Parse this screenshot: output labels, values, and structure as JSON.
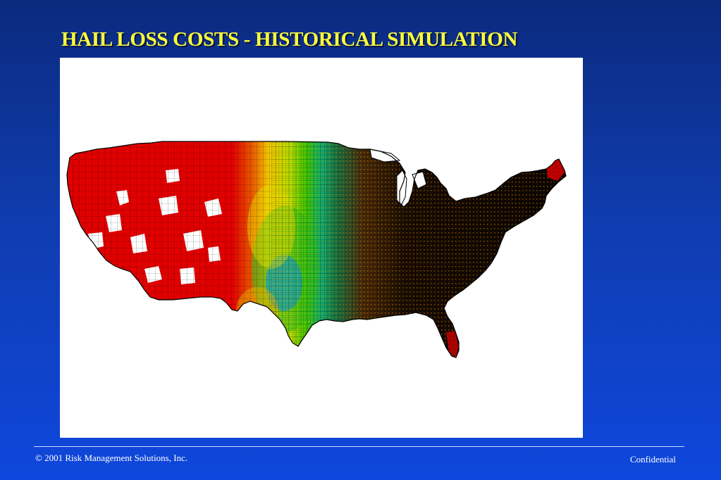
{
  "slide": {
    "title": "HAIL LOSS COSTS - HISTORICAL SIMULATION"
  },
  "map": {
    "description_icon": "us-county-choropleth-map",
    "color_scale": [
      "#e00000",
      "#e05a00",
      "#f0a000",
      "#f3e000",
      "#a6e000",
      "#38c800",
      "#00b88c",
      "#00a0e0"
    ],
    "boundary_color": "#000000"
  },
  "footer": {
    "copyright": "© 2001 Risk Management Solutions, Inc.",
    "confidential": "Confidential"
  }
}
